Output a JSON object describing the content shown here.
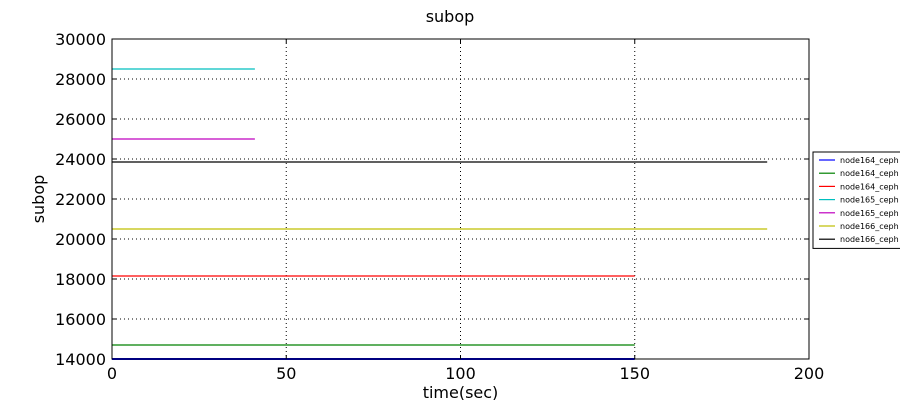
{
  "chart_data": {
    "type": "line",
    "title": "subop",
    "xlabel": "time(sec)",
    "ylabel": "subop",
    "xlim": [
      0,
      200
    ],
    "ylim": [
      14000,
      30000
    ],
    "xticks": [
      0,
      50,
      100,
      150,
      200
    ],
    "yticks": [
      14000,
      16000,
      18000,
      20000,
      22000,
      24000,
      26000,
      28000,
      30000
    ],
    "xtick_labels": [
      "0",
      "50",
      "100",
      "150",
      "200"
    ],
    "ytick_labels": [
      "14000",
      "16000",
      "18000",
      "20000",
      "22000",
      "24000",
      "26000",
      "28000",
      "30000"
    ],
    "grid": true,
    "legend_placement": "right",
    "series": [
      {
        "name": "node164_ceph",
        "color": "#0000ff",
        "x": [
          0,
          150
        ],
        "y": [
          14000,
          14000
        ]
      },
      {
        "name": "node164_ceph",
        "color": "#008000",
        "x": [
          0,
          150
        ],
        "y": [
          14700,
          14700
        ]
      },
      {
        "name": "node164_ceph",
        "color": "#ff0000",
        "x": [
          0,
          150
        ],
        "y": [
          18150,
          18150
        ]
      },
      {
        "name": "node165_ceph",
        "color": "#00bfbf",
        "x": [
          0,
          41
        ],
        "y": [
          28500,
          28500
        ]
      },
      {
        "name": "node165_ceph",
        "color": "#bf00bf",
        "x": [
          0,
          41
        ],
        "y": [
          25000,
          25000
        ]
      },
      {
        "name": "node166_ceph",
        "color": "#bfbf00",
        "x": [
          0,
          188
        ],
        "y": [
          20500,
          20500
        ]
      },
      {
        "name": "node166_ceph",
        "color": "#000000",
        "x": [
          0,
          188
        ],
        "y": [
          23850,
          23850
        ]
      }
    ]
  }
}
